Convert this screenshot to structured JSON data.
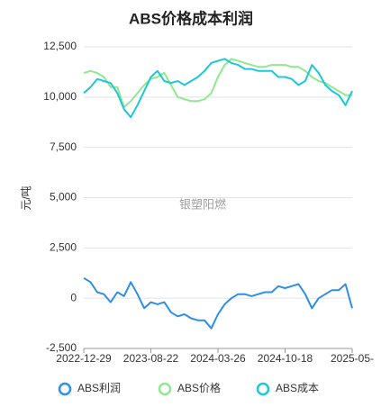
{
  "chart_data": {
    "type": "line",
    "title": "ABS价格成本利润",
    "y_label": "元/吨",
    "watermark": "银塑阳燃",
    "categories": [
      "2022-12-29",
      null,
      null,
      null,
      null,
      null,
      null,
      null,
      null,
      null,
      "2023-08-22",
      null,
      null,
      null,
      null,
      null,
      null,
      null,
      null,
      null,
      "2024-03-26",
      null,
      null,
      null,
      null,
      null,
      null,
      null,
      null,
      null,
      "2024-10-18",
      null,
      null,
      null,
      null,
      null,
      null,
      null,
      null,
      null,
      "2025-05-"
    ],
    "series": [
      {
        "name": "ABS利润",
        "color": "#2f8ee8",
        "values": [
          1000,
          800,
          300,
          200,
          -200,
          300,
          100,
          800,
          200,
          -500,
          -200,
          -300,
          -200,
          -700,
          -900,
          -800,
          -1000,
          -1100,
          -1100,
          -1500,
          -800,
          -300,
          0,
          200,
          200,
          100,
          200,
          300,
          300,
          600,
          500,
          600,
          700,
          200,
          -500,
          0,
          200,
          400,
          400,
          700,
          -500
        ]
      },
      {
        "name": "ABS价格",
        "color": "#90e890",
        "values": [
          11200,
          11300,
          11200,
          11000,
          10500,
          10500,
          9500,
          9800,
          10200,
          10600,
          10900,
          11000,
          11200,
          10600,
          10000,
          9900,
          9800,
          9800,
          9900,
          10200,
          11000,
          11600,
          11900,
          11800,
          11700,
          11600,
          11500,
          11500,
          11600,
          11600,
          11600,
          11500,
          11500,
          11300,
          11000,
          10800,
          10700,
          10500,
          10300,
          10100,
          10100
        ]
      },
      {
        "name": "ABS成本",
        "color": "#1cc8d8",
        "values": [
          10200,
          10500,
          10900,
          10800,
          10700,
          10200,
          9400,
          9000,
          9600,
          10300,
          11000,
          11300,
          10800,
          10700,
          10800,
          10600,
          10800,
          11000,
          11300,
          11700,
          11800,
          11900,
          11700,
          11600,
          11400,
          11400,
          11300,
          11300,
          11300,
          11000,
          11000,
          10900,
          10600,
          10800,
          11600,
          11200,
          10600,
          10300,
          10100,
          9600,
          10300
        ]
      }
    ],
    "ylim": [
      -2500,
      12500
    ],
    "yticks": [
      {
        "value": -2500,
        "label": "-2,500"
      },
      0,
      {
        "value": 2500,
        "label": "2,500"
      },
      {
        "value": 5000,
        "label": "5,000"
      },
      {
        "value": 7500,
        "label": "7,500"
      },
      {
        "value": 10000,
        "label": "10,000"
      },
      {
        "value": 12500,
        "label": "12,500"
      }
    ],
    "grid": true
  }
}
